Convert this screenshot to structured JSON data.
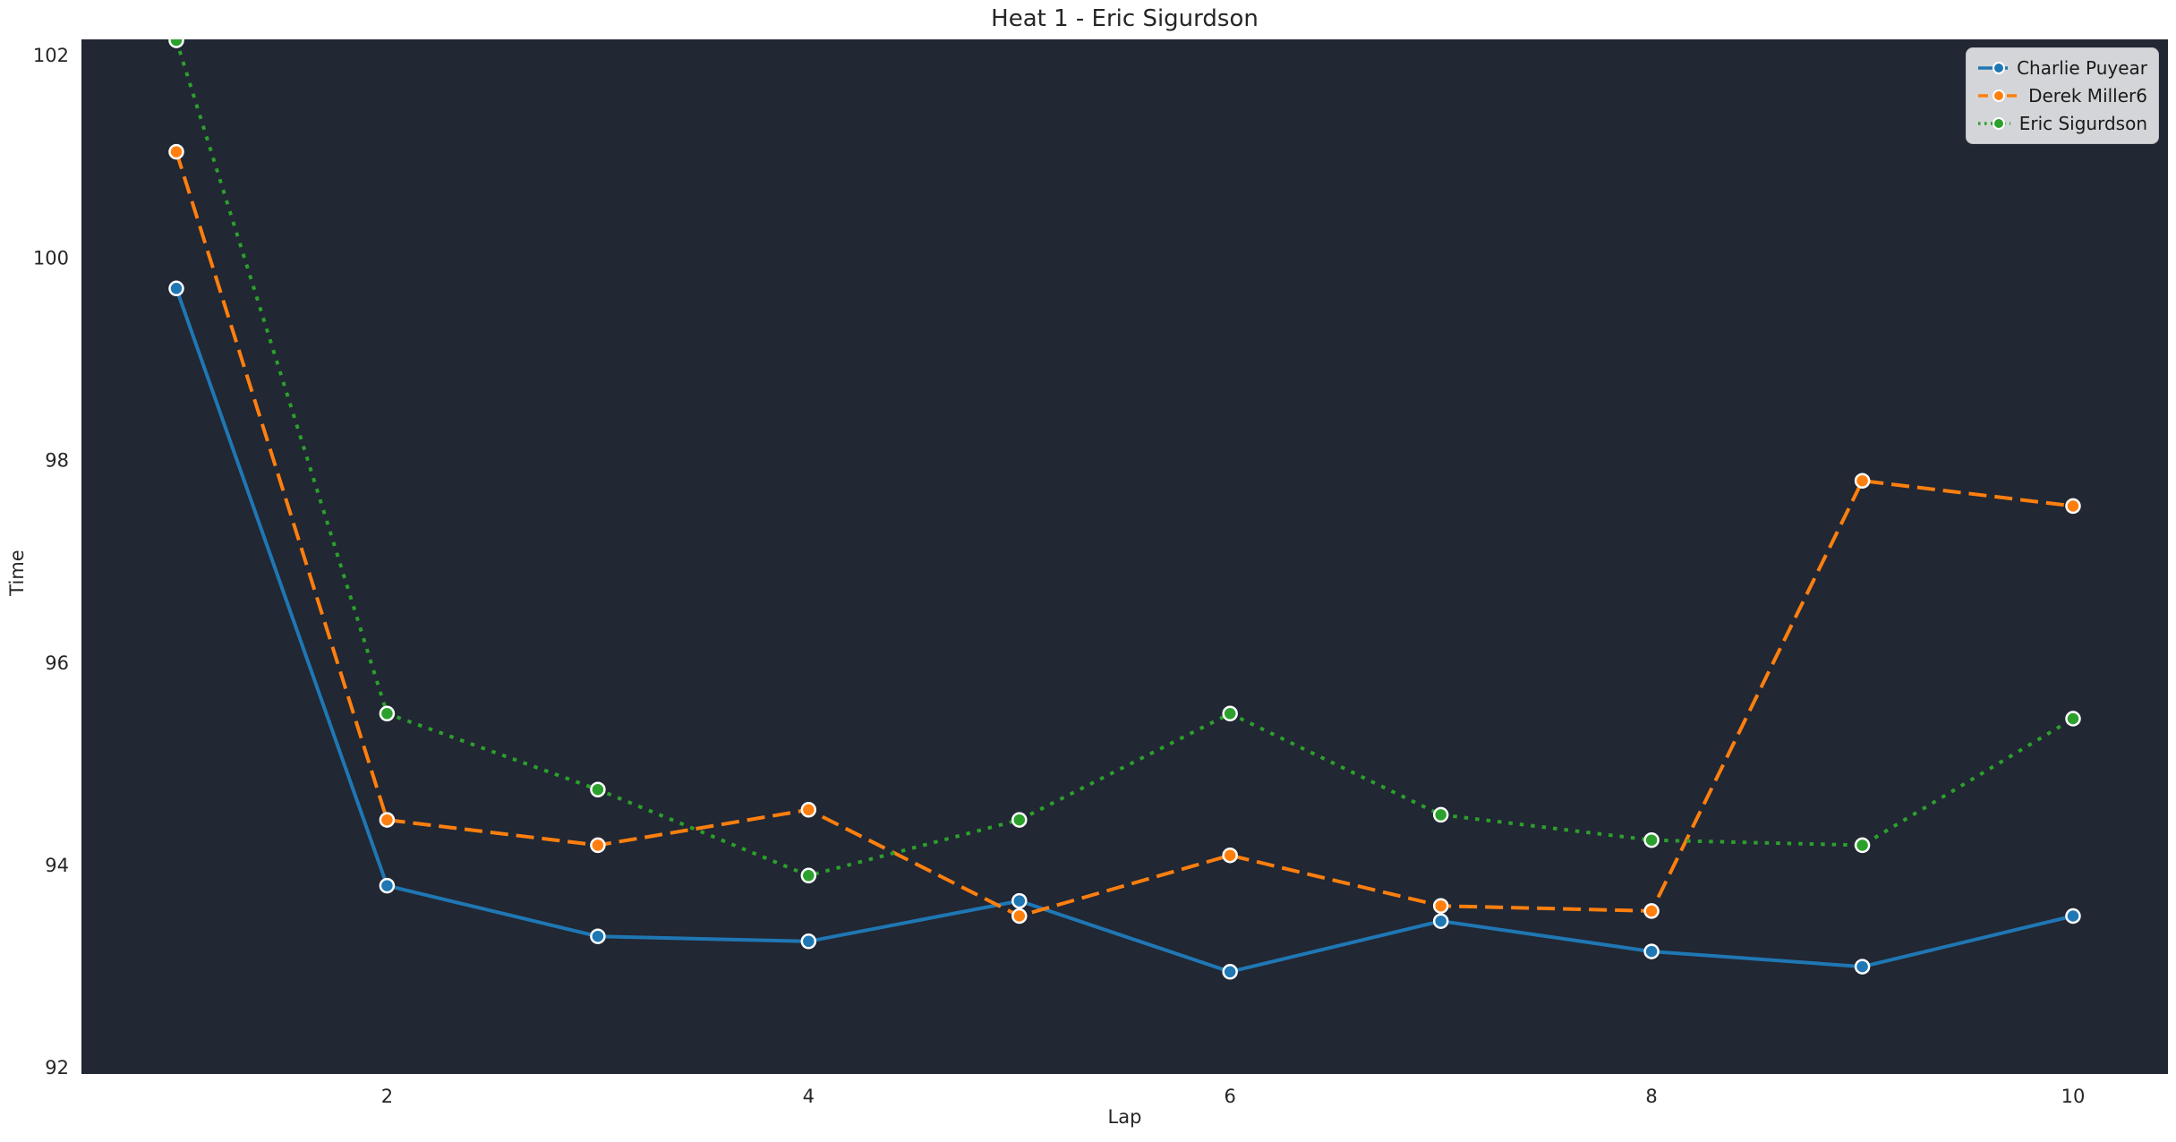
{
  "figure": {
    "title": "Heat 1 - Eric Sigurdson"
  },
  "chart_data": {
    "type": "line",
    "title": "Heat 1 - Eric Sigurdson",
    "xlabel": "Lap",
    "ylabel": "Time",
    "x": [
      1,
      2,
      3,
      4,
      5,
      6,
      7,
      8,
      9,
      10
    ],
    "series": [
      {
        "name": "Charlie Puyear",
        "color": "#1f77b4",
        "style": "solid",
        "marker": "circle",
        "values": [
          99.7,
          93.8,
          93.3,
          93.25,
          93.65,
          92.95,
          93.45,
          93.15,
          93.0,
          93.5
        ]
      },
      {
        "name": "Derek Miller6",
        "color": "#ff7f0e",
        "style": "dashed",
        "marker": "circle",
        "values": [
          101.05,
          94.45,
          94.2,
          94.55,
          93.5,
          94.1,
          93.6,
          93.55,
          97.8,
          97.55
        ]
      },
      {
        "name": "Eric Sigurdson",
        "color": "#2ca02c",
        "style": "dotted",
        "marker": "circle",
        "values": [
          102.15,
          95.5,
          94.75,
          93.9,
          94.45,
          95.5,
          94.5,
          94.25,
          94.2,
          95.45
        ]
      }
    ],
    "xticks": [
      2,
      4,
      6,
      8,
      10
    ],
    "yticks": [
      92,
      94,
      96,
      98,
      100,
      102
    ],
    "xlim": [
      0.55,
      10.45
    ],
    "ylim": [
      91.94,
      102.16
    ],
    "grid": false,
    "legend_position": "upper right",
    "colors": {
      "panel_bg": "#212733",
      "figure_bg": "#ffffff",
      "text": "#262626",
      "legend_bg": "#d4d5d8",
      "legend_border": "#c2c3c6"
    }
  }
}
